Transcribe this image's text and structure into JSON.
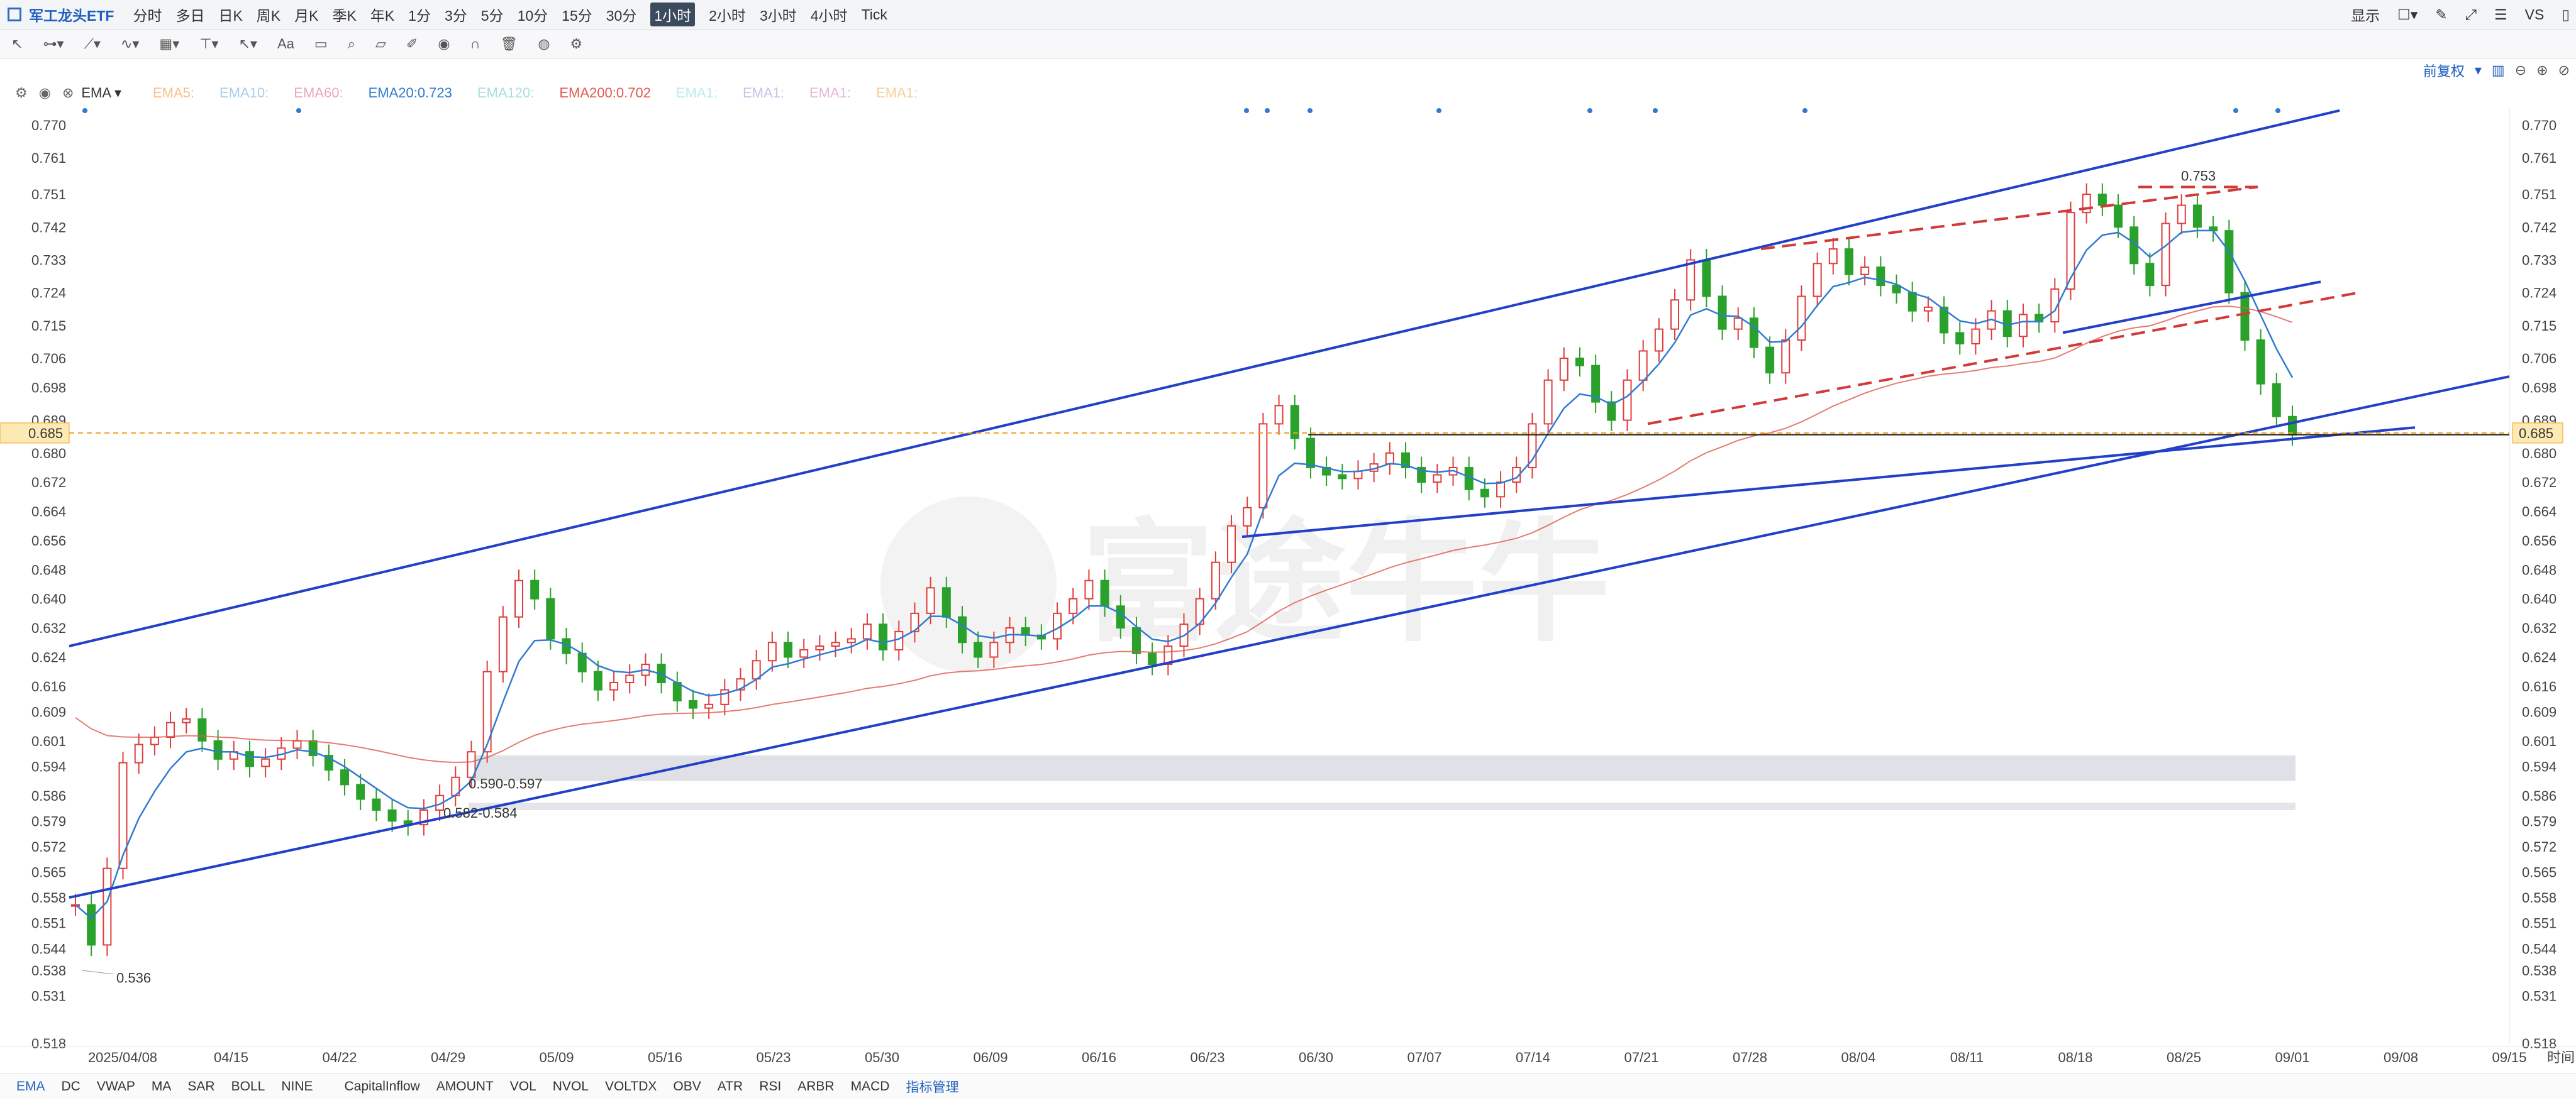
{
  "app": {
    "title": "军工龙头ETF"
  },
  "periods": [
    {
      "label": "分时",
      "active": false
    },
    {
      "label": "多日",
      "active": false
    },
    {
      "label": "日K",
      "active": false
    },
    {
      "label": "周K",
      "active": false
    },
    {
      "label": "月K",
      "active": false
    },
    {
      "label": "季K",
      "active": false
    },
    {
      "label": "年K",
      "active": false
    },
    {
      "label": "1分",
      "active": false
    },
    {
      "label": "3分",
      "active": false
    },
    {
      "label": "5分",
      "active": false
    },
    {
      "label": "10分",
      "active": false
    },
    {
      "label": "15分",
      "active": false
    },
    {
      "label": "30分",
      "active": false
    },
    {
      "label": "1小时",
      "active": true
    },
    {
      "label": "2小时",
      "active": false
    },
    {
      "label": "3小时",
      "active": false
    },
    {
      "label": "4小时",
      "active": false
    },
    {
      "label": "Tick",
      "active": false
    }
  ],
  "topright": {
    "display_label": "显示",
    "vs_label": "VS"
  },
  "indicator_bar": {
    "main": "EMA",
    "items": [
      {
        "label": "EMA5:",
        "color": "#f5c08a"
      },
      {
        "label": "EMA10:",
        "color": "#a9cde8"
      },
      {
        "label": "EMA60:",
        "color": "#e9a7bf"
      },
      {
        "label": "EMA20:0.723",
        "color": "#2f7bd0"
      },
      {
        "label": "EMA120:",
        "color": "#a9dde0"
      },
      {
        "label": "EMA200:0.702",
        "color": "#e05a4f"
      },
      {
        "label": "EMA1:",
        "color": "#b8eaf0"
      },
      {
        "label": "EMA1:",
        "color": "#c7c0e8"
      },
      {
        "label": "EMA1:",
        "color": "#e6b8d8"
      },
      {
        "label": "EMA1:",
        "color": "#f0d29a"
      }
    ],
    "adjust": "前复权"
  },
  "chart_data": {
    "type": "candlestick",
    "timeframe": "1小时",
    "ylim": [
      0.518,
      0.775
    ],
    "y_ticks": [
      "0.770",
      "0.761",
      "0.751",
      "0.742",
      "0.733",
      "0.724",
      "0.715",
      "0.706",
      "0.698",
      "0.689",
      "0.680",
      "0.672",
      "0.664",
      "0.656",
      "0.648",
      "0.640",
      "0.632",
      "0.624",
      "0.616",
      "0.609",
      "0.601",
      "0.594",
      "0.586",
      "0.579",
      "0.572",
      "0.565",
      "0.558",
      "0.551",
      "0.544",
      "0.538",
      "0.531",
      "0.518"
    ],
    "x_ticks": [
      "2025/04/08",
      "04/15",
      "04/22",
      "04/29",
      "05/09",
      "05/16",
      "05/23",
      "05/30",
      "06/09",
      "06/16",
      "06/23",
      "06/30",
      "07/07",
      "07/14",
      "07/21",
      "07/28",
      "08/04",
      "08/11",
      "08/18",
      "08/25",
      "09/01",
      "09/08",
      "09/15"
    ],
    "time_label": "时间",
    "current_price": "0.685",
    "annotations": [
      {
        "text": "0.753",
        "note": "high"
      },
      {
        "text": "0.536",
        "note": "low"
      },
      {
        "text": "0.590-0.597",
        "note": "zone"
      },
      {
        "text": "0.582-0.584",
        "note": "zone"
      }
    ],
    "close_series": [
      0.556,
      0.545,
      0.566,
      0.595,
      0.6,
      0.602,
      0.606,
      0.607,
      0.601,
      0.596,
      0.598,
      0.594,
      0.596,
      0.599,
      0.601,
      0.597,
      0.593,
      0.589,
      0.585,
      0.582,
      0.579,
      0.578,
      0.582,
      0.586,
      0.591,
      0.598,
      0.62,
      0.635,
      0.645,
      0.64,
      0.629,
      0.625,
      0.62,
      0.615,
      0.617,
      0.619,
      0.622,
      0.617,
      0.612,
      0.61,
      0.611,
      0.615,
      0.618,
      0.623,
      0.628,
      0.624,
      0.626,
      0.627,
      0.628,
      0.629,
      0.633,
      0.626,
      0.631,
      0.636,
      0.643,
      0.635,
      0.628,
      0.624,
      0.628,
      0.632,
      0.63,
      0.629,
      0.636,
      0.64,
      0.645,
      0.638,
      0.632,
      0.625,
      0.622,
      0.627,
      0.633,
      0.64,
      0.65,
      0.66,
      0.665,
      0.688,
      0.693,
      0.684,
      0.676,
      0.674,
      0.673,
      0.675,
      0.677,
      0.68,
      0.676,
      0.672,
      0.674,
      0.676,
      0.67,
      0.668,
      0.672,
      0.676,
      0.688,
      0.7,
      0.706,
      0.704,
      0.694,
      0.689,
      0.7,
      0.708,
      0.714,
      0.722,
      0.733,
      0.723,
      0.714,
      0.717,
      0.709,
      0.702,
      0.711,
      0.723,
      0.732,
      0.736,
      0.729,
      0.731,
      0.726,
      0.724,
      0.719,
      0.72,
      0.713,
      0.71,
      0.714,
      0.719,
      0.712,
      0.718,
      0.716,
      0.725,
      0.746,
      0.751,
      0.748,
      0.742,
      0.732,
      0.726,
      0.743,
      0.748,
      0.742,
      0.741,
      0.724,
      0.711,
      0.699,
      0.69,
      0.685
    ],
    "series": [
      {
        "name": "EMA20",
        "value": "0.723",
        "color": "#2f7bd0"
      },
      {
        "name": "EMA200",
        "value": "0.702",
        "color": "#e05a4f"
      }
    ]
  },
  "bottom_tabs": [
    {
      "label": "EMA",
      "active": true
    },
    {
      "label": "DC"
    },
    {
      "label": "VWAP"
    },
    {
      "label": "MA"
    },
    {
      "label": "SAR"
    },
    {
      "label": "BOLL"
    },
    {
      "label": "NINE"
    },
    {
      "label": "CapitalInflow"
    },
    {
      "label": "AMOUNT"
    },
    {
      "label": "VOL"
    },
    {
      "label": "NVOL"
    },
    {
      "label": "VOLTDX"
    },
    {
      "label": "OBV"
    },
    {
      "label": "ATR"
    },
    {
      "label": "RSI"
    },
    {
      "label": "ARBR"
    },
    {
      "label": "MACD"
    },
    {
      "label": "指标管理",
      "blue": true
    }
  ],
  "watermark": "富途牛牛"
}
